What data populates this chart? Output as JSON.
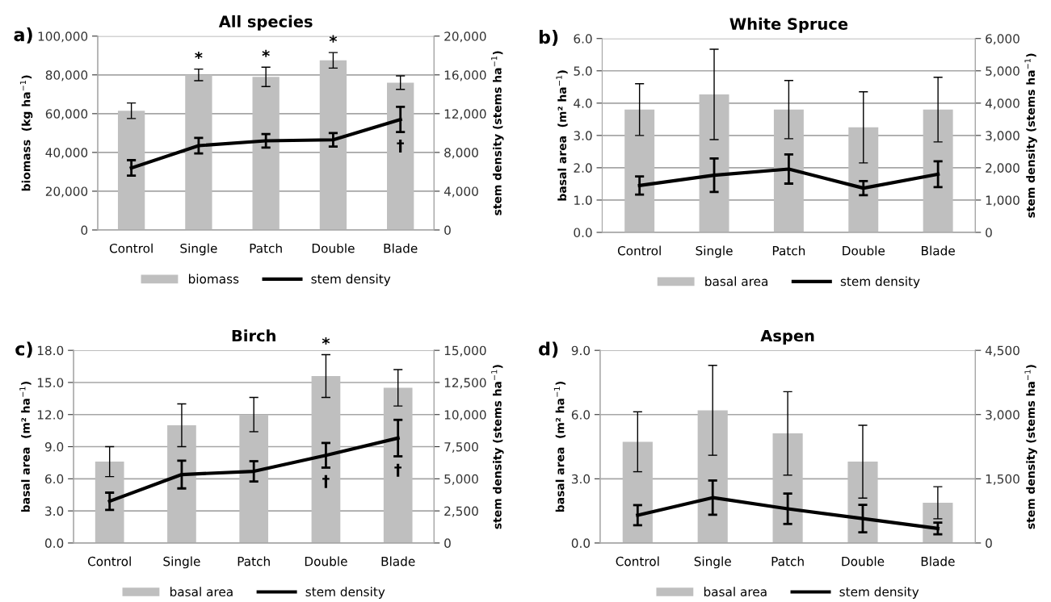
{
  "chart_data": [
    {
      "type": "bar",
      "title": "All species",
      "ylabel": "biomass  (kg ha$^{−1}$)",
      "y2label": "stem density (stems ha$^{−1}$)",
      "categories": [
        "Control",
        "Single",
        "Patch",
        "Double",
        "Blade"
      ],
      "series": [
        {
          "name": "biomass",
          "color": "#bfbfbf",
          "values": [
            61500,
            80000,
            79000,
            87500,
            76000
          ],
          "errors": [
            4000,
            3000,
            5000,
            4000,
            3500
          ]
        },
        {
          "name": "stem density",
          "type": "line",
          "axis": "y2",
          "color": "#000000",
          "values": [
            6400,
            8700,
            9200,
            9300,
            11400
          ],
          "errors": [
            800,
            800,
            700,
            700,
            1300
          ]
        }
      ],
      "ylim": [
        0,
        100000
      ],
      "yticks": [
        0,
        {
          "value": 20000,
          "label": "20,000"
        },
        {
          "value": 40000,
          "label": "40,000"
        },
        {
          "value": 60000,
          "label": "60,000"
        },
        {
          "value": 80000,
          "label": "80,000"
        },
        {
          "value": 100000,
          "label": "100,000"
        }
      ],
      "y2lim": [
        0,
        20000
      ],
      "y2ticks": [
        0,
        {
          "value": 4000,
          "label": "4,000"
        },
        {
          "value": 8000,
          "label": "8,000"
        },
        {
          "value": 12000,
          "label": "12,000"
        },
        {
          "value": 16000,
          "label": "16,000"
        },
        {
          "value": 20000,
          "label": "20,000"
        }
      ],
      "grid": "y",
      "legend": "bottom",
      "marker": "none",
      "line_style": "solid",
      "annotations": [
        "a)",
        {
          "text": "*",
          "x": "Single",
          "y": 80000
        },
        {
          "text": "*",
          "x": "Patch",
          "y": 79000
        },
        {
          "text": "*",
          "x": "Double",
          "y": 87500
        },
        {
          "text": "†",
          "x": "Blade",
          "y": 57000
        }
      ]
    },
    {
      "type": "bar",
      "title": "White Spruce",
      "ylabel": "basal area  (m² ha$^{−1}$)",
      "y2label": "stem density (stems ha$^{−1}$)",
      "categories": [
        "Control",
        "Single",
        "Patch",
        "Double",
        "Blade"
      ],
      "series": [
        {
          "name": "basal area",
          "type": "bar",
          "color": "#bfbfbf",
          "values": [
            3.8,
            4.27,
            3.8,
            3.25,
            3.8
          ],
          "errors": [
            0.8,
            1.4,
            0.9,
            1.1,
            1.0
          ]
        },
        {
          "name": "stem density",
          "type": "line",
          "axis": "y2",
          "color": "#000000",
          "values": [
            1450,
            1770,
            1960,
            1370,
            1800
          ],
          "errors": [
            280,
            520,
            450,
            220,
            400
          ]
        }
      ],
      "ylim": [
        0,
        6
      ],
      "yticks": [
        {
          "value": 0,
          "label": "0.0"
        },
        {
          "value": 1,
          "label": "1.0"
        },
        {
          "value": 2,
          "label": "2.0"
        },
        {
          "value": 3,
          "label": "3.0"
        },
        {
          "value": 4,
          "label": "4.0"
        },
        {
          "value": 5,
          "label": "5.0"
        },
        {
          "value": 6,
          "label": "6.0"
        }
      ],
      "y2lim": [
        0,
        6000
      ],
      "y2ticks": [
        0,
        {
          "value": 1000,
          "label": "1,000"
        },
        {
          "value": 2000,
          "label": "2,000"
        },
        {
          "value": 3000,
          "label": "3,000"
        },
        {
          "value": 4000,
          "label": "4,000"
        },
        {
          "value": 5000,
          "label": "5,000"
        },
        {
          "value": 6000,
          "label": "6,000"
        }
      ],
      "grid": "y",
      "legend": "bottom",
      "marker": "none",
      "line_style": "solid",
      "annotations": [
        "b)"
      ]
    },
    {
      "type": "bar",
      "title": "Birch",
      "ylabel": "basal area  (m² ha$^{−1}$)",
      "y2label": "stem density (stems ha$^{−1}$)",
      "categories": [
        "Control",
        "Single",
        "Patch",
        "Double",
        "Blade"
      ],
      "series": [
        {
          "name": "basal area",
          "type": "bar",
          "color": "#bfbfbf",
          "values": [
            7.6,
            11.0,
            12.0,
            15.6,
            14.5
          ],
          "errors": [
            1.4,
            2.0,
            1.6,
            2.0,
            1.7
          ]
        },
        {
          "name": "stem density",
          "type": "line",
          "axis": "y2",
          "color": "#000000",
          "values": [
            3250,
            5330,
            5580,
            6830,
            8170
          ],
          "errors": [
            670,
            1080,
            790,
            960,
            1420
          ]
        }
      ],
      "ylim": [
        0,
        18
      ],
      "yticks": [
        {
          "value": 0,
          "label": "0.0"
        },
        {
          "value": 3,
          "label": "3.0"
        },
        {
          "value": 6,
          "label": "6.0"
        },
        {
          "value": 9,
          "label": "9.0"
        },
        {
          "value": 12,
          "label": "12.0"
        },
        {
          "value": 15,
          "label": "15.0"
        },
        {
          "value": 18,
          "label": "18.0"
        }
      ],
      "y2lim": [
        0,
        15000
      ],
      "y2ticks": [
        0,
        {
          "value": 2500,
          "label": "2,500"
        },
        {
          "value": 5000,
          "label": "5,000"
        },
        {
          "value": 7500,
          "label": "7,500"
        },
        {
          "value": 10000,
          "label": "10,000"
        },
        {
          "value": 12500,
          "label": "12,500"
        },
        {
          "value": 15000,
          "label": "15,000"
        }
      ],
      "grid": "y",
      "legend": "bottom",
      "marker": "none",
      "line_style": "solid",
      "annotations": [
        "c)",
        {
          "text": "*",
          "x": "Double",
          "y": 15.6
        },
        {
          "text": "†",
          "x": "Double",
          "y": 8.2
        },
        {
          "text": "†",
          "x": "Blade",
          "y": 9.8
        }
      ]
    },
    {
      "type": "bar",
      "title": "Aspen",
      "ylabel": "basal area  (m² ha$^{−1}$)",
      "y2label": "stem density (stems ha$^{−1}$)",
      "categories": [
        "Control",
        "Single",
        "Patch",
        "Double",
        "Blade"
      ],
      "series": [
        {
          "name": "basal area",
          "type": "bar",
          "color": "#bfbfbf",
          "values": [
            4.73,
            6.2,
            5.12,
            3.8,
            1.88
          ],
          "errors": [
            1.4,
            2.1,
            1.95,
            1.7,
            0.75
          ]
        },
        {
          "name": "stem density",
          "type": "line",
          "axis": "y2",
          "color": "#000000",
          "values": [
            650,
            1060,
            800,
            570,
            340
          ],
          "errors": [
            235,
            400,
            355,
            320,
            135
          ]
        }
      ],
      "ylim": [
        0,
        9
      ],
      "yticks": [
        {
          "value": 0,
          "label": "0.0"
        },
        {
          "value": 3,
          "label": "3.0"
        },
        {
          "value": 6,
          "label": "6.0"
        },
        {
          "value": 9,
          "label": "9.0"
        }
      ],
      "y2lim": [
        0,
        4500
      ],
      "y2ticks": [
        0,
        {
          "value": 1500,
          "label": "1,500"
        },
        {
          "value": 3000,
          "label": "3,000"
        },
        {
          "value": 4500,
          "label": "4,500"
        }
      ],
      "grid": "y",
      "legend": "bottom",
      "marker": "none",
      "line_style": "solid",
      "annotations": [
        "d)"
      ]
    }
  ]
}
